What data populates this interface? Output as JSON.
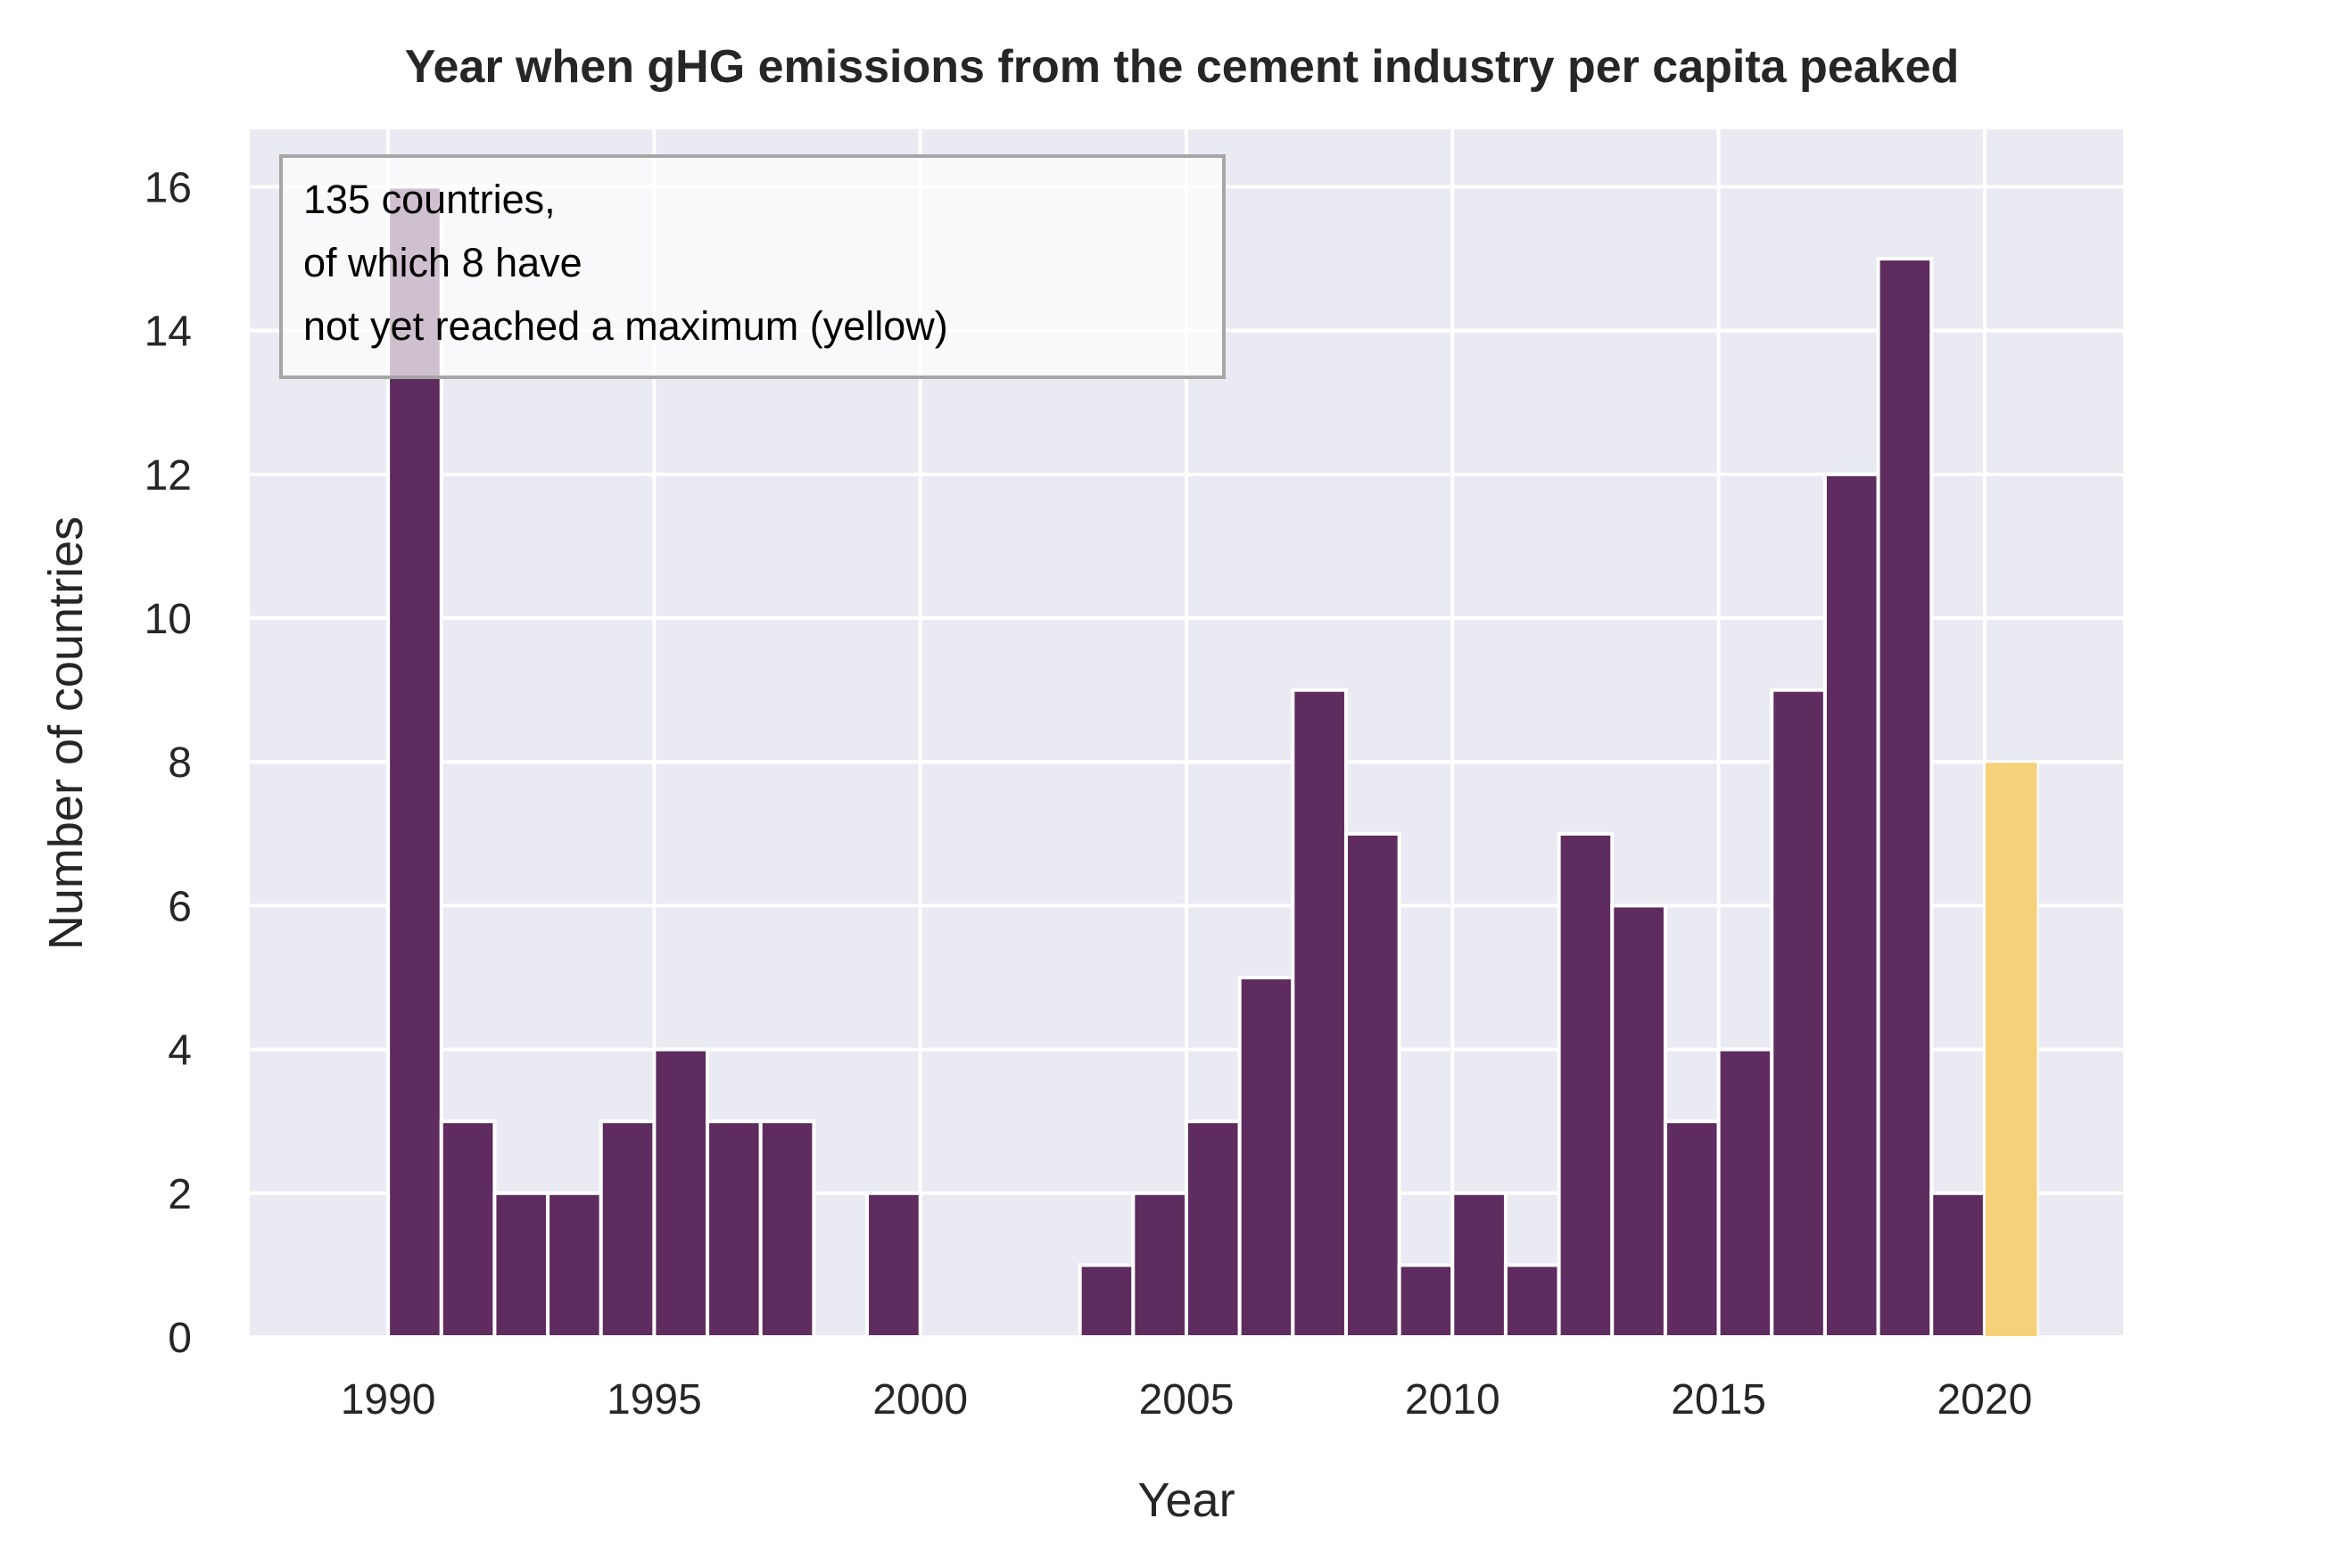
{
  "chart_data": {
    "type": "bar",
    "title": "Year when gHG emissions from the cement industry per capita peaked",
    "xlabel": "Year",
    "ylabel": "Number of countries",
    "xlim": [
      1987.4,
      2022.6
    ],
    "ylim": [
      0,
      16.8
    ],
    "xticks": [
      1990,
      1995,
      2000,
      2005,
      2010,
      2015,
      2020
    ],
    "yticks": [
      0,
      2,
      4,
      6,
      8,
      10,
      12,
      14,
      16
    ],
    "bin_width": 1,
    "grid": true,
    "colors": {
      "background": "#eaeaf2",
      "grid": "#ffffff",
      "peaked": "#5e2c5f",
      "not_yet_peaked": "#f5d27a"
    },
    "bins": [
      {
        "start": 1990,
        "value": 16,
        "status": "peaked"
      },
      {
        "start": 1991,
        "value": 3,
        "status": "peaked"
      },
      {
        "start": 1992,
        "value": 2,
        "status": "peaked"
      },
      {
        "start": 1993,
        "value": 2,
        "status": "peaked"
      },
      {
        "start": 1994,
        "value": 3,
        "status": "peaked"
      },
      {
        "start": 1995,
        "value": 4,
        "status": "peaked"
      },
      {
        "start": 1996,
        "value": 3,
        "status": "peaked"
      },
      {
        "start": 1997,
        "value": 3,
        "status": "peaked"
      },
      {
        "start": 1998,
        "value": 0,
        "status": "peaked"
      },
      {
        "start": 1999,
        "value": 2,
        "status": "peaked"
      },
      {
        "start": 2000,
        "value": 0,
        "status": "peaked"
      },
      {
        "start": 2001,
        "value": 0,
        "status": "peaked"
      },
      {
        "start": 2002,
        "value": 0,
        "status": "peaked"
      },
      {
        "start": 2003,
        "value": 1,
        "status": "peaked"
      },
      {
        "start": 2004,
        "value": 2,
        "status": "peaked"
      },
      {
        "start": 2005,
        "value": 3,
        "status": "peaked"
      },
      {
        "start": 2006,
        "value": 5,
        "status": "peaked"
      },
      {
        "start": 2007,
        "value": 9,
        "status": "peaked"
      },
      {
        "start": 2008,
        "value": 7,
        "status": "peaked"
      },
      {
        "start": 2009,
        "value": 1,
        "status": "peaked"
      },
      {
        "start": 2010,
        "value": 2,
        "status": "peaked"
      },
      {
        "start": 2011,
        "value": 1,
        "status": "peaked"
      },
      {
        "start": 2012,
        "value": 7,
        "status": "peaked"
      },
      {
        "start": 2013,
        "value": 6,
        "status": "peaked"
      },
      {
        "start": 2014,
        "value": 3,
        "status": "peaked"
      },
      {
        "start": 2015,
        "value": 4,
        "status": "peaked"
      },
      {
        "start": 2016,
        "value": 9,
        "status": "peaked"
      },
      {
        "start": 2017,
        "value": 12,
        "status": "peaked"
      },
      {
        "start": 2018,
        "value": 15,
        "status": "peaked"
      },
      {
        "start": 2019,
        "value": 2,
        "status": "peaked"
      },
      {
        "start": 2020,
        "value": 8,
        "status": "not_yet_peaked"
      }
    ],
    "annotation": {
      "lines": [
        "135 countries,",
        "of which 8 have",
        "not yet reached a maximum (yellow)"
      ],
      "placement": "top-left"
    }
  }
}
